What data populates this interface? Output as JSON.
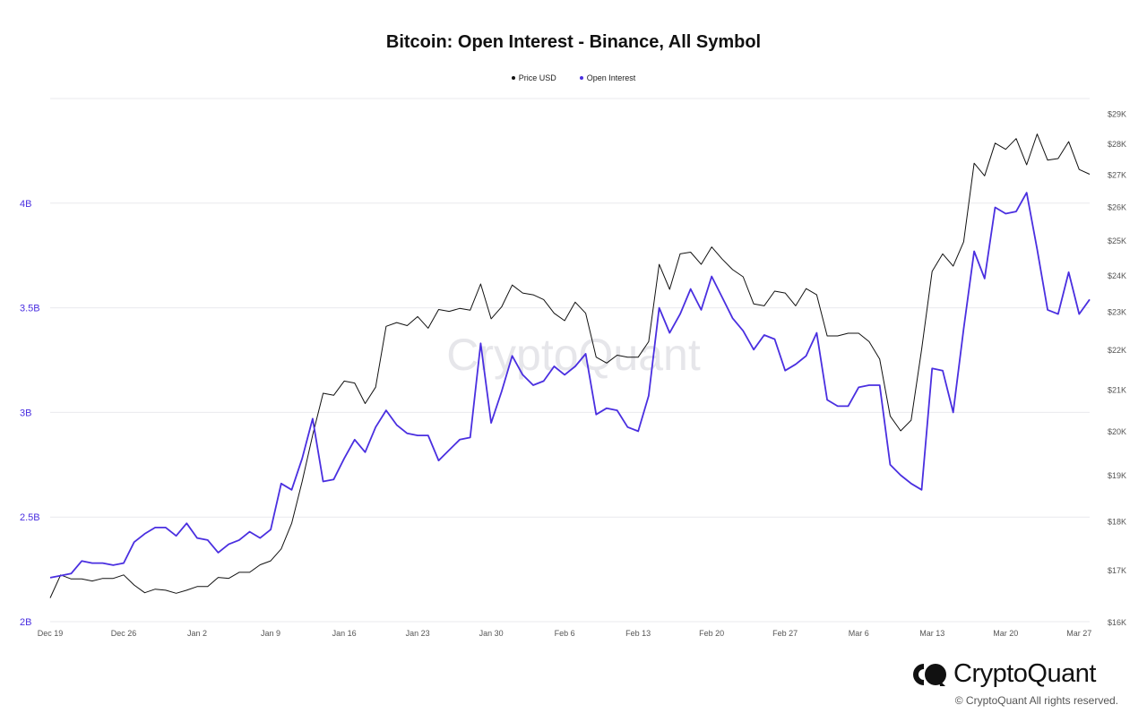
{
  "colors": {
    "price": "#111111",
    "open_interest": "#4a2fe0",
    "grid": "#e9e9ee",
    "axis_text": "#555555"
  },
  "legend": [
    {
      "label": "Price USD",
      "color": "#111111"
    },
    {
      "label": "Open Interest",
      "color": "#4a2fe0"
    }
  ],
  "brand": {
    "name": "CryptoQuant",
    "watermark": "CryptoQuant",
    "copyright": "© CryptoQuant All rights reserved."
  },
  "chart_data": {
    "type": "line",
    "title": "Bitcoin: Open Interest - Binance, All Symbol",
    "grid": true,
    "legend_placement": "top-center",
    "x_ticks": [
      "Dec 19",
      "Dec 26",
      "Jan 2",
      "Jan 9",
      "Jan 16",
      "Jan 23",
      "Jan 30",
      "Feb 6",
      "Feb 13",
      "Feb 20",
      "Feb 27",
      "Mar 6",
      "Mar 13",
      "Mar 20",
      "Mar 27"
    ],
    "x_range": [
      "2022-12-19",
      "2023-03-28"
    ],
    "y_left": {
      "ticks": [
        "2B",
        "2.5B",
        "3B",
        "3.5B",
        "4B"
      ],
      "tick_values": [
        2.0,
        2.5,
        3.0,
        3.5,
        4.0
      ],
      "range": [
        2.0,
        4.5
      ],
      "unit": "B USD"
    },
    "y_right": {
      "ticks": [
        "$16K",
        "$17K",
        "$18K",
        "$19K",
        "$20K",
        "$21K",
        "$22K",
        "$23K",
        "$24K",
        "$25K",
        "$26K",
        "$27K",
        "$28K",
        "$29K"
      ],
      "tick_values": [
        16,
        17,
        18,
        19,
        20,
        21,
        22,
        23,
        24,
        25,
        26,
        27,
        28,
        29
      ],
      "range": [
        16,
        29.5
      ],
      "scale": "log",
      "unit": "K USD"
    },
    "series": [
      {
        "name": "Price USD",
        "axis": "right",
        "values": [
          [
            "2022-12-19",
            16.45
          ],
          [
            "2022-12-20",
            16.9
          ],
          [
            "2022-12-21",
            16.82
          ],
          [
            "2022-12-22",
            16.82
          ],
          [
            "2022-12-23",
            16.78
          ],
          [
            "2022-12-24",
            16.83
          ],
          [
            "2022-12-25",
            16.83
          ],
          [
            "2022-12-26",
            16.9
          ],
          [
            "2022-12-27",
            16.7
          ],
          [
            "2022-12-28",
            16.55
          ],
          [
            "2022-12-29",
            16.62
          ],
          [
            "2022-12-30",
            16.6
          ],
          [
            "2022-12-31",
            16.54
          ],
          [
            "2023-01-01",
            16.6
          ],
          [
            "2023-01-02",
            16.67
          ],
          [
            "2023-01-03",
            16.67
          ],
          [
            "2023-01-04",
            16.85
          ],
          [
            "2023-01-05",
            16.83
          ],
          [
            "2023-01-06",
            16.95
          ],
          [
            "2023-01-07",
            16.95
          ],
          [
            "2023-01-08",
            17.1
          ],
          [
            "2023-01-09",
            17.18
          ],
          [
            "2023-01-10",
            17.42
          ],
          [
            "2023-01-11",
            17.95
          ],
          [
            "2023-01-12",
            18.85
          ],
          [
            "2023-01-13",
            19.9
          ],
          [
            "2023-01-14",
            20.9
          ],
          [
            "2023-01-15",
            20.85
          ],
          [
            "2023-01-16",
            21.2
          ],
          [
            "2023-01-17",
            21.15
          ],
          [
            "2023-01-18",
            20.65
          ],
          [
            "2023-01-19",
            21.05
          ],
          [
            "2023-01-20",
            22.6
          ],
          [
            "2023-01-21",
            22.7
          ],
          [
            "2023-01-22",
            22.62
          ],
          [
            "2023-01-23",
            22.86
          ],
          [
            "2023-01-24",
            22.55
          ],
          [
            "2023-01-25",
            23.05
          ],
          [
            "2023-01-26",
            23.0
          ],
          [
            "2023-01-27",
            23.08
          ],
          [
            "2023-01-28",
            23.03
          ],
          [
            "2023-01-29",
            23.75
          ],
          [
            "2023-01-30",
            22.8
          ],
          [
            "2023-01-31",
            23.12
          ],
          [
            "2023-02-01",
            23.72
          ],
          [
            "2023-02-02",
            23.5
          ],
          [
            "2023-02-03",
            23.45
          ],
          [
            "2023-02-04",
            23.32
          ],
          [
            "2023-02-05",
            22.95
          ],
          [
            "2023-02-06",
            22.75
          ],
          [
            "2023-02-07",
            23.25
          ],
          [
            "2023-02-08",
            22.95
          ],
          [
            "2023-02-09",
            21.8
          ],
          [
            "2023-02-10",
            21.65
          ],
          [
            "2023-02-11",
            21.85
          ],
          [
            "2023-02-12",
            21.8
          ],
          [
            "2023-02-13",
            21.8
          ],
          [
            "2023-02-14",
            22.2
          ],
          [
            "2023-02-15",
            24.3
          ],
          [
            "2023-02-16",
            23.6
          ],
          [
            "2023-02-17",
            24.6
          ],
          [
            "2023-02-18",
            24.65
          ],
          [
            "2023-02-19",
            24.3
          ],
          [
            "2023-02-20",
            24.8
          ],
          [
            "2023-02-21",
            24.45
          ],
          [
            "2023-02-22",
            24.15
          ],
          [
            "2023-02-23",
            23.95
          ],
          [
            "2023-02-24",
            23.2
          ],
          [
            "2023-02-25",
            23.15
          ],
          [
            "2023-02-26",
            23.55
          ],
          [
            "2023-02-27",
            23.5
          ],
          [
            "2023-02-28",
            23.15
          ],
          [
            "2023-03-01",
            23.62
          ],
          [
            "2023-03-02",
            23.45
          ],
          [
            "2023-03-03",
            22.35
          ],
          [
            "2023-03-04",
            22.35
          ],
          [
            "2023-03-05",
            22.42
          ],
          [
            "2023-03-06",
            22.42
          ],
          [
            "2023-03-07",
            22.2
          ],
          [
            "2023-03-08",
            21.75
          ],
          [
            "2023-03-09",
            20.35
          ],
          [
            "2023-03-10",
            20.0
          ],
          [
            "2023-03-11",
            20.25
          ],
          [
            "2023-03-12",
            22.0
          ],
          [
            "2023-03-13",
            24.1
          ],
          [
            "2023-03-14",
            24.6
          ],
          [
            "2023-03-15",
            24.25
          ],
          [
            "2023-03-16",
            24.95
          ],
          [
            "2023-03-17",
            27.35
          ],
          [
            "2023-03-18",
            26.95
          ],
          [
            "2023-03-19",
            28.0
          ],
          [
            "2023-03-20",
            27.8
          ],
          [
            "2023-03-21",
            28.15
          ],
          [
            "2023-03-22",
            27.3
          ],
          [
            "2023-03-23",
            28.3
          ],
          [
            "2023-03-24",
            27.45
          ],
          [
            "2023-03-25",
            27.5
          ],
          [
            "2023-03-26",
            28.05
          ],
          [
            "2023-03-27",
            27.15
          ],
          [
            "2023-03-28",
            27.0
          ]
        ]
      },
      {
        "name": "Open Interest",
        "axis": "left",
        "values": [
          [
            "2022-12-19",
            2.21
          ],
          [
            "2022-12-20",
            2.22
          ],
          [
            "2022-12-21",
            2.23
          ],
          [
            "2022-12-22",
            2.29
          ],
          [
            "2022-12-23",
            2.28
          ],
          [
            "2022-12-24",
            2.28
          ],
          [
            "2022-12-25",
            2.27
          ],
          [
            "2022-12-26",
            2.28
          ],
          [
            "2022-12-27",
            2.38
          ],
          [
            "2022-12-28",
            2.42
          ],
          [
            "2022-12-29",
            2.45
          ],
          [
            "2022-12-30",
            2.45
          ],
          [
            "2022-12-31",
            2.41
          ],
          [
            "2023-01-01",
            2.47
          ],
          [
            "2023-01-02",
            2.4
          ],
          [
            "2023-01-03",
            2.39
          ],
          [
            "2023-01-04",
            2.33
          ],
          [
            "2023-01-05",
            2.37
          ],
          [
            "2023-01-06",
            2.39
          ],
          [
            "2023-01-07",
            2.43
          ],
          [
            "2023-01-08",
            2.4
          ],
          [
            "2023-01-09",
            2.44
          ],
          [
            "2023-01-10",
            2.66
          ],
          [
            "2023-01-11",
            2.63
          ],
          [
            "2023-01-12",
            2.78
          ],
          [
            "2023-01-13",
            2.97
          ],
          [
            "2023-01-14",
            2.67
          ],
          [
            "2023-01-15",
            2.68
          ],
          [
            "2023-01-16",
            2.78
          ],
          [
            "2023-01-17",
            2.87
          ],
          [
            "2023-01-18",
            2.81
          ],
          [
            "2023-01-19",
            2.93
          ],
          [
            "2023-01-20",
            3.01
          ],
          [
            "2023-01-21",
            2.94
          ],
          [
            "2023-01-22",
            2.9
          ],
          [
            "2023-01-23",
            2.89
          ],
          [
            "2023-01-24",
            2.89
          ],
          [
            "2023-01-25",
            2.77
          ],
          [
            "2023-01-26",
            2.82
          ],
          [
            "2023-01-27",
            2.87
          ],
          [
            "2023-01-28",
            2.88
          ],
          [
            "2023-01-29",
            3.33
          ],
          [
            "2023-01-30",
            2.95
          ],
          [
            "2023-01-31",
            3.1
          ],
          [
            "2023-02-01",
            3.27
          ],
          [
            "2023-02-02",
            3.18
          ],
          [
            "2023-02-03",
            3.13
          ],
          [
            "2023-02-04",
            3.15
          ],
          [
            "2023-02-05",
            3.22
          ],
          [
            "2023-02-06",
            3.18
          ],
          [
            "2023-02-07",
            3.22
          ],
          [
            "2023-02-08",
            3.28
          ],
          [
            "2023-02-09",
            2.99
          ],
          [
            "2023-02-10",
            3.02
          ],
          [
            "2023-02-11",
            3.01
          ],
          [
            "2023-02-12",
            2.93
          ],
          [
            "2023-02-13",
            2.91
          ],
          [
            "2023-02-14",
            3.08
          ],
          [
            "2023-02-15",
            3.5
          ],
          [
            "2023-02-16",
            3.38
          ],
          [
            "2023-02-17",
            3.47
          ],
          [
            "2023-02-18",
            3.59
          ],
          [
            "2023-02-19",
            3.49
          ],
          [
            "2023-02-20",
            3.65
          ],
          [
            "2023-02-21",
            3.55
          ],
          [
            "2023-02-22",
            3.45
          ],
          [
            "2023-02-23",
            3.39
          ],
          [
            "2023-02-24",
            3.3
          ],
          [
            "2023-02-25",
            3.37
          ],
          [
            "2023-02-26",
            3.35
          ],
          [
            "2023-02-27",
            3.2
          ],
          [
            "2023-02-28",
            3.23
          ],
          [
            "2023-03-01",
            3.27
          ],
          [
            "2023-03-02",
            3.38
          ],
          [
            "2023-03-03",
            3.06
          ],
          [
            "2023-03-04",
            3.03
          ],
          [
            "2023-03-05",
            3.03
          ],
          [
            "2023-03-06",
            3.12
          ],
          [
            "2023-03-07",
            3.13
          ],
          [
            "2023-03-08",
            3.13
          ],
          [
            "2023-03-09",
            2.75
          ],
          [
            "2023-03-10",
            2.7
          ],
          [
            "2023-03-11",
            2.66
          ],
          [
            "2023-03-12",
            2.63
          ],
          [
            "2023-03-13",
            3.21
          ],
          [
            "2023-03-14",
            3.2
          ],
          [
            "2023-03-15",
            3.0
          ],
          [
            "2023-03-16",
            3.4
          ],
          [
            "2023-03-17",
            3.77
          ],
          [
            "2023-03-18",
            3.64
          ],
          [
            "2023-03-19",
            3.98
          ],
          [
            "2023-03-20",
            3.95
          ],
          [
            "2023-03-21",
            3.96
          ],
          [
            "2023-03-22",
            4.05
          ],
          [
            "2023-03-23",
            3.78
          ],
          [
            "2023-03-24",
            3.49
          ],
          [
            "2023-03-25",
            3.47
          ],
          [
            "2023-03-26",
            3.67
          ],
          [
            "2023-03-27",
            3.47
          ],
          [
            "2023-03-28",
            3.54
          ]
        ]
      }
    ]
  }
}
